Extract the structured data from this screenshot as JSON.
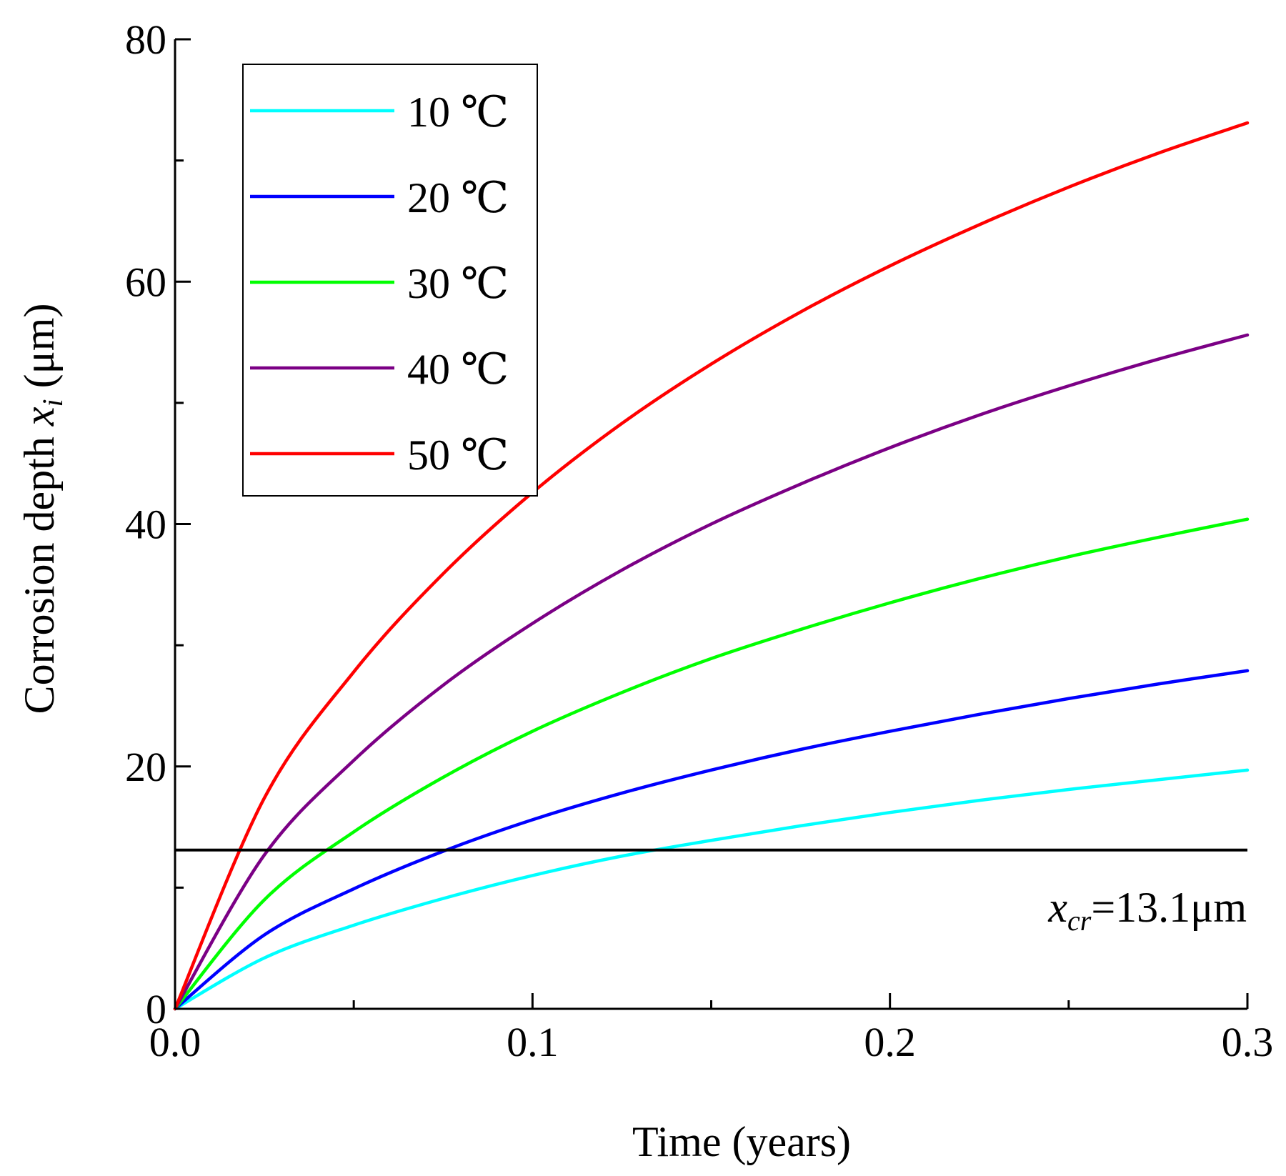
{
  "chart_data": {
    "type": "line",
    "title": "",
    "xlabel": "Time (years)",
    "ylabel_main": "Corrosion depth ",
    "ylabel_var": "x",
    "ylabel_sub": "i",
    "ylabel_unit": " (μm)",
    "xlim": [
      0,
      0.3
    ],
    "ylim": [
      0,
      80
    ],
    "xticks": [
      0.0,
      0.1,
      0.2,
      0.3
    ],
    "xtick_labels": [
      "0.0",
      "0.1",
      "0.2",
      "0.3"
    ],
    "yticks": [
      0,
      20,
      40,
      60,
      80
    ],
    "ytick_labels": [
      "0",
      "20",
      "40",
      "60",
      "80"
    ],
    "grid": false,
    "legend_position": "top-left",
    "x": [
      0,
      0.025,
      0.05,
      0.075,
      0.1,
      0.125,
      0.15,
      0.175,
      0.2,
      0.225,
      0.25,
      0.275,
      0.3
    ],
    "series": [
      {
        "name": "10 ℃",
        "color": "#00ffff",
        "values": [
          0,
          4.2,
          6.9,
          9.1,
          11.0,
          12.6,
          13.9,
          15.1,
          16.2,
          17.2,
          18.1,
          18.9,
          19.7
        ]
      },
      {
        "name": "20 ℃",
        "color": "#0000ff",
        "values": [
          0,
          6.1,
          9.9,
          13.0,
          15.6,
          17.8,
          19.7,
          21.4,
          22.9,
          24.3,
          25.6,
          26.8,
          27.9
        ]
      },
      {
        "name": "30 ℃",
        "color": "#00ff00",
        "values": [
          0,
          9.0,
          14.6,
          19.1,
          22.9,
          26.1,
          28.9,
          31.3,
          33.5,
          35.5,
          37.3,
          38.9,
          40.4
        ]
      },
      {
        "name": "40 ℃",
        "color": "#7b0085",
        "values": [
          0,
          12.7,
          20.5,
          26.7,
          31.8,
          36.2,
          40.0,
          43.3,
          46.3,
          49.0,
          51.4,
          53.6,
          55.6
        ]
      },
      {
        "name": "50 ℃",
        "color": "#ff0000",
        "values": [
          0,
          17.4,
          27.8,
          35.9,
          42.6,
          48.3,
          53.2,
          57.5,
          61.3,
          64.7,
          67.8,
          70.6,
          73.1
        ]
      }
    ],
    "threshold": {
      "value": 13.1,
      "color": "#000000",
      "label_var": "x",
      "label_sub": "cr",
      "label_rest": "=13.1μm"
    }
  }
}
